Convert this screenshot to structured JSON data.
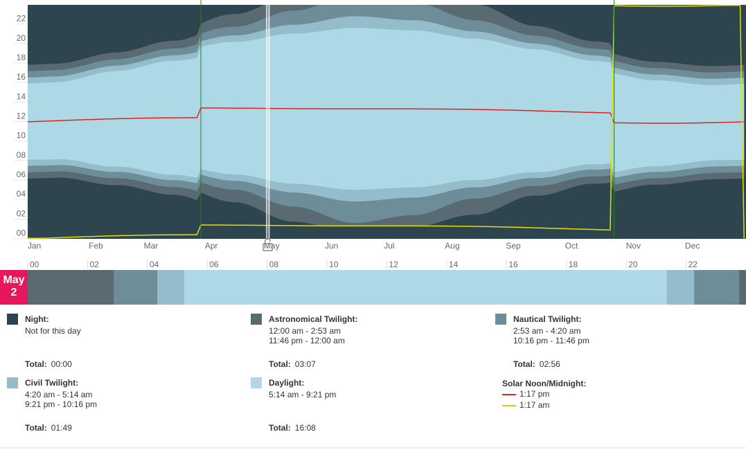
{
  "chart_data": {
    "type": "area",
    "title": "",
    "xlabel": "",
    "ylabel": "",
    "x_categories": [
      "Jan",
      "Feb",
      "Mar",
      "Apr",
      "May",
      "Jun",
      "Jul",
      "Aug",
      "Sep",
      "Oct",
      "Nov",
      "Dec"
    ],
    "y_ticks": [
      "00",
      "02",
      "04",
      "06",
      "08",
      "10",
      "12",
      "14",
      "16",
      "18",
      "20",
      "22"
    ],
    "ylim": [
      0,
      24
    ],
    "dst_period": {
      "start_day_of_year": 88,
      "end_day_of_year": 298
    },
    "selected_day_of_year": 122,
    "colors": {
      "night": "#2e4550",
      "astronomical": "#5a6a72",
      "nautical": "#6d8d98",
      "civil": "#95bccb",
      "daylight": "#add8e6",
      "solar_noon": "#e8201a",
      "solar_midnight": "#e3e000",
      "dst_line": "#2a7a2a",
      "badge": "#e8175d"
    },
    "series": [
      {
        "name": "Night",
        "dark_hours_by_month": [
          7.2,
          6.2,
          4.3,
          1.5,
          0,
          0,
          0,
          0,
          2.4,
          4.9,
          6.4,
          7.4
        ]
      },
      {
        "name": "Astronomical Twilight",
        "hours_by_month": [
          1.3,
          1.4,
          1.6,
          2.6,
          3.1,
          2.0,
          2.4,
          3.3,
          2.0,
          1.5,
          1.3,
          1.3
        ]
      },
      {
        "name": "Nautical Twilight",
        "hours_by_month": [
          1.3,
          1.3,
          1.4,
          1.8,
          2.9,
          4.4,
          3.6,
          2.3,
          1.6,
          1.4,
          1.3,
          1.3
        ]
      },
      {
        "name": "Civil Twilight",
        "hours_by_month": [
          1.2,
          1.1,
          1.1,
          1.3,
          1.8,
          2.4,
          2.1,
          1.5,
          1.2,
          1.1,
          1.2,
          1.3
        ]
      },
      {
        "name": "Daylight",
        "hours_by_month": [
          7.9,
          9.8,
          11.7,
          13.6,
          15.4,
          16.6,
          16.1,
          14.5,
          12.6,
          10.6,
          8.8,
          7.7
        ]
      },
      {
        "name": "Solar Noon",
        "hour_by_month": [
          12.2,
          12.4,
          12.3,
          13.3,
          13.2,
          13.3,
          13.4,
          13.4,
          13.2,
          12.9,
          11.8,
          12.0
        ]
      },
      {
        "name": "Solar Midnight",
        "hour_by_month": [
          0.2,
          0.4,
          0.3,
          1.3,
          1.2,
          1.3,
          1.4,
          1.4,
          1.2,
          0.9,
          -0.2,
          0.0
        ]
      }
    ]
  },
  "timeline": {
    "hour_labels": [
      "00",
      "02",
      "04",
      "06",
      "08",
      "10",
      "12",
      "14",
      "16",
      "18",
      "20",
      "22"
    ],
    "segments": [
      {
        "type": "astronomical",
        "start": 0.0,
        "end": 2.883
      },
      {
        "type": "nautical",
        "start": 2.883,
        "end": 4.333
      },
      {
        "type": "civil",
        "start": 4.333,
        "end": 5.233
      },
      {
        "type": "daylight",
        "start": 5.233,
        "end": 21.35
      },
      {
        "type": "civil",
        "start": 21.35,
        "end": 22.267
      },
      {
        "type": "nautical",
        "start": 22.267,
        "end": 23.767
      },
      {
        "type": "astronomical",
        "start": 23.767,
        "end": 24.0
      }
    ]
  },
  "day_badge": {
    "month": "May",
    "day": "2"
  },
  "legend": {
    "night": {
      "title": "Night:",
      "lines": [
        "Not for this day"
      ],
      "total_label": "Total:",
      "total": "00:00"
    },
    "astronomical": {
      "title": "Astronomical Twilight:",
      "lines": [
        "12:00 am - 2:53 am",
        "11:46 pm - 12:00 am"
      ],
      "total_label": "Total:",
      "total": "03:07"
    },
    "nautical": {
      "title": "Nautical Twilight:",
      "lines": [
        "2:53 am - 4:20 am",
        "10:16 pm - 11:46 pm"
      ],
      "total_label": "Total:",
      "total": "02:56"
    },
    "civil": {
      "title": "Civil Twilight:",
      "lines": [
        "4:20 am - 5:14 am",
        "9:21 pm - 10:16 pm"
      ],
      "total_label": "Total:",
      "total": "01:49"
    },
    "daylight": {
      "title": "Daylight:",
      "lines": [
        "5:14 am - 9:21 pm"
      ],
      "total_label": "Total:",
      "total": "16:08"
    },
    "solar": {
      "title": "Solar Noon/Midnight:",
      "noon": "1:17 pm",
      "midnight": "1:17 am"
    }
  },
  "icons": {
    "lock": "lock-open-icon"
  }
}
